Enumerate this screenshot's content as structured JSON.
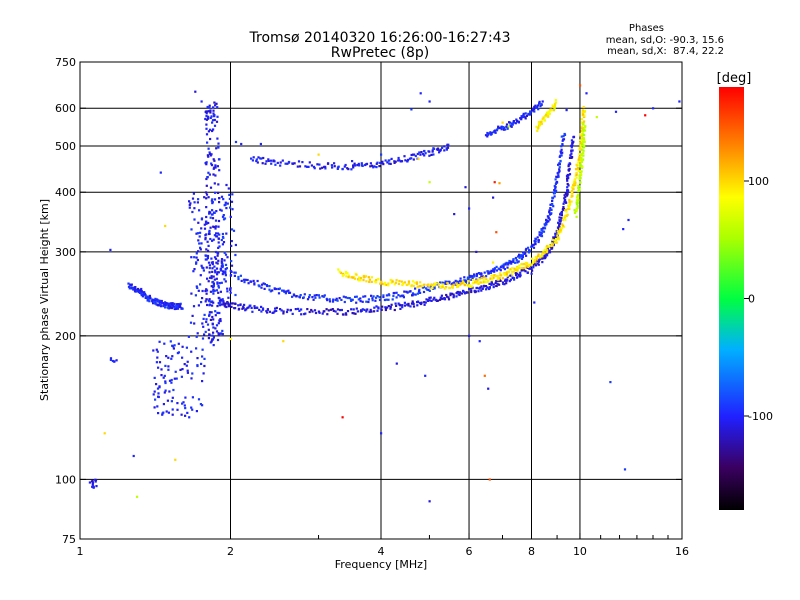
{
  "chart_data": {
    "type": "scatter",
    "title": "Tromsø 20140320 16:26:00-16:27:43",
    "subtitle": "RwPretec (8p)",
    "xlabel": "Frequency [MHz]",
    "ylabel": "Stationary phase Virtual Height [km]",
    "x_scale": "log",
    "y_scale": "log",
    "xlim": [
      1,
      16
    ],
    "ylim": [
      75,
      750
    ],
    "x_ticks": [
      1,
      2,
      4,
      6,
      8,
      10,
      16
    ],
    "y_ticks": [
      75,
      100,
      200,
      300,
      400,
      500,
      600,
      750
    ],
    "grid_x": [
      2,
      4,
      6,
      8,
      10
    ],
    "grid_y": [
      100,
      200,
      300,
      400,
      500,
      600
    ],
    "phases_box": {
      "title": "Phases",
      "line_o": "mean, sd,O: -90.3, 15.6",
      "line_x": "mean, sd,X:  87.4, 22.2"
    },
    "colorbar": {
      "label": "[deg]",
      "range": [
        -180,
        180
      ],
      "ticks": [
        "100",
        "0",
        "-100"
      ],
      "tick_values": [
        100,
        0,
        -100
      ]
    },
    "traces": [
      {
        "name": "",
        "phase": -100,
        "kind": "line",
        "points": [
          [
            1.25,
            255
          ],
          [
            1.3,
            250
          ],
          [
            1.35,
            243
          ],
          [
            1.4,
            237
          ],
          [
            1.45,
            234
          ],
          [
            1.5,
            232
          ],
          [
            1.55,
            231
          ],
          [
            1.6,
            230
          ]
        ]
      },
      {
        "name": "",
        "phase": -110,
        "kind": "line",
        "points": [
          [
            1.9,
            235
          ],
          [
            2.0,
            232
          ],
          [
            2.2,
            228
          ],
          [
            2.5,
            226
          ],
          [
            3.0,
            225
          ],
          [
            3.5,
            225
          ],
          [
            4.0,
            228
          ],
          [
            4.5,
            232
          ],
          [
            5.0,
            237
          ],
          [
            5.5,
            242
          ],
          [
            6.0,
            248
          ],
          [
            6.5,
            254
          ],
          [
            7.0,
            260
          ],
          [
            7.5,
            268
          ],
          [
            8.0,
            278
          ],
          [
            8.5,
            292
          ],
          [
            8.8,
            310
          ],
          [
            9.0,
            330
          ],
          [
            9.2,
            360
          ],
          [
            9.4,
            400
          ],
          [
            9.55,
            460
          ],
          [
            9.7,
            530
          ]
        ]
      },
      {
        "name": "",
        "phase": -95,
        "kind": "line",
        "points": [
          [
            2.0,
            270
          ],
          [
            2.3,
            255
          ],
          [
            2.6,
            246
          ],
          [
            3.0,
            240
          ],
          [
            3.5,
            238
          ],
          [
            4.0,
            240
          ],
          [
            4.5,
            245
          ],
          [
            5.0,
            252
          ],
          [
            5.5,
            258
          ],
          [
            6.0,
            263
          ],
          [
            6.5,
            270
          ],
          [
            7.0,
            278
          ],
          [
            7.5,
            290
          ],
          [
            8.0,
            305
          ],
          [
            8.4,
            330
          ],
          [
            8.7,
            360
          ],
          [
            8.9,
            400
          ],
          [
            9.1,
            460
          ],
          [
            9.3,
            540
          ]
        ]
      },
      {
        "name": "",
        "phase": 95,
        "kind": "line",
        "points": [
          [
            3.3,
            272
          ],
          [
            3.6,
            265
          ],
          [
            4.0,
            260
          ],
          [
            4.5,
            257
          ],
          [
            5.0,
            255
          ],
          [
            5.5,
            255
          ],
          [
            6.0,
            257
          ],
          [
            6.5,
            262
          ],
          [
            7.0,
            268
          ],
          [
            7.5,
            276
          ],
          [
            8.0,
            286
          ],
          [
            8.5,
            300
          ],
          [
            9.0,
            320
          ],
          [
            9.3,
            350
          ],
          [
            9.6,
            390
          ],
          [
            9.8,
            430
          ],
          [
            10.0,
            480
          ],
          [
            10.1,
            540
          ],
          [
            10.2,
            600
          ]
        ]
      },
      {
        "name": "",
        "phase": 60,
        "kind": "line",
        "points": [
          [
            9.8,
            360
          ],
          [
            9.95,
            400
          ],
          [
            10.05,
            450
          ],
          [
            10.15,
            500
          ],
          [
            10.2,
            560
          ]
        ]
      },
      {
        "name": "",
        "phase": -105,
        "kind": "line",
        "points": [
          [
            2.2,
            470
          ],
          [
            2.5,
            462
          ],
          [
            3.0,
            455
          ],
          [
            3.5,
            453
          ],
          [
            4.0,
            458
          ],
          [
            4.5,
            470
          ],
          [
            5.0,
            485
          ],
          [
            5.5,
            500
          ]
        ]
      },
      {
        "name": "",
        "phase": -100,
        "kind": "line",
        "points": [
          [
            6.5,
            530
          ],
          [
            7.0,
            545
          ],
          [
            7.5,
            565
          ],
          [
            8.0,
            590
          ],
          [
            8.4,
            620
          ]
        ]
      },
      {
        "name": "",
        "phase": 90,
        "kind": "line",
        "points": [
          [
            8.2,
            545
          ],
          [
            8.6,
            580
          ],
          [
            9.0,
            620
          ]
        ]
      }
    ],
    "clusters": [
      {
        "name": "",
        "phase": -105,
        "x_range": [
          1.78,
          1.9
        ],
        "y_range": [
          190,
          620
        ],
        "count": 220
      },
      {
        "name": "",
        "phase": -100,
        "x_range": [
          1.65,
          1.95
        ],
        "y_range": [
          200,
          400
        ],
        "count": 140
      },
      {
        "name": "",
        "phase": -100,
        "x_range": [
          1.4,
          1.78
        ],
        "y_range": [
          135,
          200
        ],
        "count": 110
      },
      {
        "name": "",
        "phase": -95,
        "x_range": [
          1.9,
          2.05
        ],
        "y_range": [
          230,
          420
        ],
        "count": 60
      },
      {
        "name": "",
        "phase": -110,
        "x_range": [
          1.04,
          1.08
        ],
        "y_range": [
          96,
          100
        ],
        "count": 14
      },
      {
        "name": "",
        "phase": -100,
        "x_range": [
          1.15,
          1.2
        ],
        "y_range": [
          175,
          182
        ],
        "count": 6
      }
    ],
    "scatter_points": [
      [
        1.7,
        650,
        -110
      ],
      [
        1.75,
        620,
        -100
      ],
      [
        2.05,
        510,
        -90
      ],
      [
        2.1,
        505,
        -100
      ],
      [
        1.45,
        440,
        -100
      ],
      [
        1.48,
        340,
        100
      ],
      [
        1.55,
        110,
        100
      ],
      [
        1.28,
        112,
        -100
      ],
      [
        1.3,
        92,
        60
      ],
      [
        1.12,
        125,
        100
      ],
      [
        1.15,
        303,
        -100
      ],
      [
        1.6,
        180,
        -100
      ],
      [
        2.0,
        197,
        90
      ],
      [
        2.55,
        195,
        100
      ],
      [
        3.35,
        135,
        180
      ],
      [
        4.0,
        125,
        -100
      ],
      [
        4.9,
        165,
        -100
      ],
      [
        5.0,
        90,
        -110
      ],
      [
        5.0,
        620,
        -100
      ],
      [
        4.6,
        597,
        -90
      ],
      [
        4.8,
        645,
        -100
      ],
      [
        4.75,
        470,
        100
      ],
      [
        5.0,
        420,
        60
      ],
      [
        5.9,
        410,
        -110
      ],
      [
        6.0,
        370,
        -100
      ],
      [
        6.2,
        300,
        -110
      ],
      [
        6.0,
        200,
        -110
      ],
      [
        6.3,
        195,
        -100
      ],
      [
        6.45,
        165,
        140
      ],
      [
        6.55,
        155,
        -110
      ],
      [
        6.6,
        100,
        150
      ],
      [
        6.7,
        285,
        90
      ],
      [
        6.75,
        420,
        170
      ],
      [
        6.7,
        390,
        -110
      ],
      [
        6.9,
        418,
        120
      ],
      [
        6.8,
        330,
        150
      ],
      [
        7.0,
        560,
        100
      ],
      [
        7.2,
        550,
        60
      ],
      [
        8.0,
        270,
        -100
      ],
      [
        8.1,
        235,
        -100
      ],
      [
        8.9,
        600,
        60
      ],
      [
        9.4,
        595,
        -100
      ],
      [
        10.0,
        670,
        150
      ],
      [
        10.3,
        645,
        -100
      ],
      [
        10.8,
        575,
        60
      ],
      [
        12.3,
        105,
        -90
      ],
      [
        12.5,
        350,
        -100
      ],
      [
        11.8,
        590,
        -100
      ],
      [
        12.2,
        335,
        -100
      ],
      [
        14.0,
        600,
        -100
      ],
      [
        15.8,
        620,
        -100
      ],
      [
        11.5,
        160,
        -90
      ],
      [
        13.5,
        580,
        180
      ],
      [
        2.3,
        505,
        -100
      ],
      [
        3.0,
        480,
        100
      ],
      [
        3.5,
        465,
        -100
      ],
      [
        4.0,
        480,
        -90
      ],
      [
        4.3,
        175,
        -110
      ],
      [
        5.6,
        360,
        -110
      ]
    ]
  }
}
